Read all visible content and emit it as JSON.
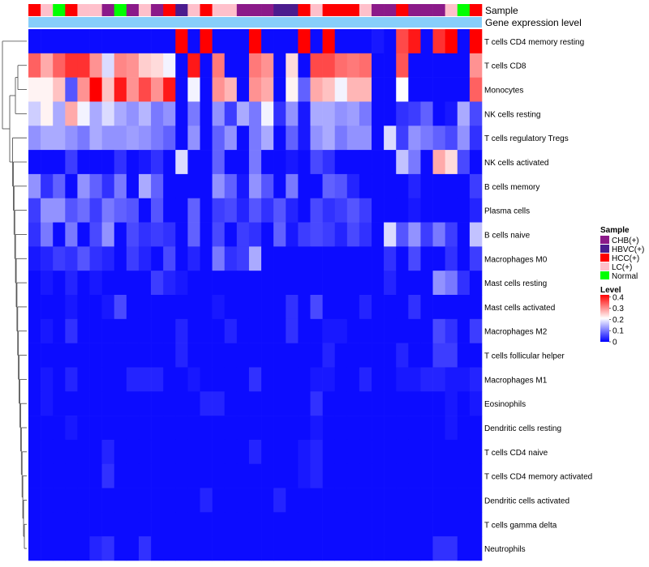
{
  "chart_data": {
    "type": "heatmap",
    "annotation_labels": {
      "sample": "Sample",
      "expression": "Gene expression level"
    },
    "columns": 37,
    "sample_groups": [
      "HCC(+)",
      "LC(+)",
      "Normal",
      "HCC(+)",
      "LC(+)",
      "LC(+)",
      "CHB(+)",
      "Normal",
      "CHB(+)",
      "LC(+)",
      "CHB(+)",
      "HCC(+)",
      "HBVC(+)",
      "LC(+)",
      "HCC(+)",
      "LC(+)",
      "LC(+)",
      "CHB(+)",
      "CHB(+)",
      "CHB(+)",
      "HBVC(+)",
      "HBVC(+)",
      "HCC(+)",
      "LC(+)",
      "HCC(+)",
      "HCC(+)",
      "HCC(+)",
      "LC(+)",
      "CHB(+)",
      "CHB(+)",
      "HCC(+)",
      "CHB(+)",
      "CHB(+)",
      "CHB(+)",
      "LC(+)",
      "Normal",
      "HCC(+)"
    ],
    "rows": [
      "T cells CD4 memory resting",
      "T cells CD8",
      "Monocytes",
      "NK cells resting",
      "T cells regulatory  Tregs",
      "NK cells activated",
      "B cells memory",
      "Plasma cells",
      "B cells naive",
      "Macrophages M0",
      "Mast cells resting",
      "Mast cells activated",
      "Macrophages M2",
      "T cells follicular helper",
      "Macrophages M1",
      "Eosinophils",
      "Dendritic cells resting",
      "T cells CD4 naive",
      "T cells CD4 memory activated",
      "Dendritic cells activated",
      "T cells gamma delta",
      "Neutrophils"
    ],
    "values": [
      [
        0.01,
        0.01,
        0.01,
        0.01,
        0.01,
        0.01,
        0.01,
        0.01,
        0.01,
        0.01,
        0.01,
        0.01,
        0.42,
        0.01,
        0.42,
        0.01,
        0.01,
        0.01,
        0.42,
        0.01,
        0.01,
        0.01,
        0.42,
        0.01,
        0.42,
        0.01,
        0.01,
        0.01,
        0.02,
        0.01,
        0.36,
        0.4,
        0.01,
        0.38,
        0.42,
        0.01,
        0.42
      ],
      [
        0.34,
        0.28,
        0.34,
        0.38,
        0.38,
        0.3,
        0.18,
        0.31,
        0.3,
        0.25,
        0.24,
        0.2,
        0.01,
        0.4,
        0.01,
        0.32,
        0.01,
        0.01,
        0.32,
        0.3,
        0.01,
        0.24,
        0.01,
        0.36,
        0.36,
        0.33,
        0.32,
        0.33,
        0.01,
        0.01,
        0.35,
        0.01,
        0.01,
        0.01,
        0.01,
        0.01,
        0.3
      ],
      [
        0.22,
        0.22,
        0.26,
        0.07,
        0.3,
        0.42,
        0.26,
        0.4,
        0.3,
        0.36,
        0.3,
        0.4,
        0.01,
        0.2,
        0.01,
        0.3,
        0.27,
        0.01,
        0.3,
        0.28,
        0.01,
        0.22,
        0.08,
        0.28,
        0.26,
        0.2,
        0.27,
        0.27,
        0.01,
        0.01,
        0.21,
        0.01,
        0.01,
        0.01,
        0.01,
        0.01,
        0.34
      ],
      [
        0.17,
        0.22,
        0.14,
        0.28,
        0.2,
        0.14,
        0.18,
        0.14,
        0.12,
        0.15,
        0.1,
        0.12,
        0.01,
        0.1,
        0.01,
        0.12,
        0.05,
        0.14,
        0.1,
        0.2,
        0.04,
        0.12,
        0.02,
        0.14,
        0.14,
        0.12,
        0.13,
        0.1,
        0.01,
        0.01,
        0.04,
        0.05,
        0.08,
        0.01,
        0.02,
        0.14,
        0.06
      ],
      [
        0.12,
        0.14,
        0.14,
        0.12,
        0.1,
        0.14,
        0.12,
        0.12,
        0.13,
        0.12,
        0.1,
        0.08,
        0.01,
        0.12,
        0.01,
        0.08,
        0.12,
        0.01,
        0.1,
        0.14,
        0.01,
        0.08,
        0.02,
        0.12,
        0.14,
        0.1,
        0.12,
        0.12,
        0.01,
        0.18,
        0.05,
        0.12,
        0.1,
        0.08,
        0.06,
        0.12,
        0.04
      ],
      [
        0.01,
        0.01,
        0.01,
        0.05,
        0.01,
        0.01,
        0.01,
        0.04,
        0.01,
        0.02,
        0.04,
        0.01,
        0.18,
        0.01,
        0.01,
        0.08,
        0.01,
        0.01,
        0.1,
        0.01,
        0.01,
        0.02,
        0.01,
        0.06,
        0.04,
        0.01,
        0.01,
        0.01,
        0.01,
        0.01,
        0.16,
        0.1,
        0.01,
        0.28,
        0.24,
        0.06,
        0.01
      ],
      [
        0.12,
        0.04,
        0.08,
        0.01,
        0.12,
        0.08,
        0.04,
        0.1,
        0.01,
        0.14,
        0.08,
        0.01,
        0.01,
        0.01,
        0.01,
        0.12,
        0.08,
        0.02,
        0.12,
        0.07,
        0.01,
        0.1,
        0.01,
        0.01,
        0.08,
        0.07,
        0.03,
        0.01,
        0.01,
        0.01,
        0.01,
        0.03,
        0.01,
        0.01,
        0.01,
        0.01,
        0.05
      ],
      [
        0.05,
        0.12,
        0.12,
        0.07,
        0.09,
        0.05,
        0.1,
        0.08,
        0.07,
        0.01,
        0.07,
        0.01,
        0.01,
        0.08,
        0.01,
        0.05,
        0.06,
        0.03,
        0.07,
        0.04,
        0.07,
        0.03,
        0.01,
        0.06,
        0.04,
        0.05,
        0.07,
        0.05,
        0.01,
        0.01,
        0.01,
        0.02,
        0.01,
        0.01,
        0.01,
        0.01,
        0.03
      ],
      [
        0.04,
        0.1,
        0.01,
        0.1,
        0.01,
        0.06,
        0.12,
        0.01,
        0.06,
        0.04,
        0.05,
        0.04,
        0.01,
        0.08,
        0.01,
        0.06,
        0.01,
        0.05,
        0.04,
        0.01,
        0.08,
        0.02,
        0.05,
        0.06,
        0.05,
        0.03,
        0.06,
        0.04,
        0.01,
        0.18,
        0.07,
        0.12,
        0.05,
        0.1,
        0.05,
        0.01,
        0.16
      ],
      [
        0.02,
        0.03,
        0.05,
        0.04,
        0.07,
        0.04,
        0.03,
        0.01,
        0.05,
        0.03,
        0.01,
        0.06,
        0.01,
        0.03,
        0.01,
        0.1,
        0.04,
        0.05,
        0.14,
        0.01,
        0.01,
        0.01,
        0.01,
        0.01,
        0.01,
        0.01,
        0.01,
        0.01,
        0.01,
        0.04,
        0.01,
        0.06,
        0.01,
        0.01,
        0.04,
        0.01,
        0.05
      ],
      [
        0.01,
        0.02,
        0.01,
        0.03,
        0.01,
        0.02,
        0.01,
        0.01,
        0.01,
        0.01,
        0.05,
        0.03,
        0.02,
        0.01,
        0.01,
        0.01,
        0.01,
        0.01,
        0.01,
        0.01,
        0.01,
        0.01,
        0.01,
        0.01,
        0.01,
        0.01,
        0.01,
        0.01,
        0.01,
        0.03,
        0.01,
        0.01,
        0.01,
        0.12,
        0.1,
        0.04,
        0.01
      ],
      [
        0.01,
        0.01,
        0.01,
        0.02,
        0.01,
        0.01,
        0.02,
        0.06,
        0.01,
        0.01,
        0.01,
        0.01,
        0.01,
        0.01,
        0.01,
        0.02,
        0.01,
        0.01,
        0.01,
        0.01,
        0.01,
        0.04,
        0.01,
        0.06,
        0.01,
        0.01,
        0.01,
        0.03,
        0.01,
        0.01,
        0.01,
        0.04,
        0.01,
        0.01,
        0.01,
        0.01,
        0.01
      ],
      [
        0.01,
        0.02,
        0.01,
        0.04,
        0.01,
        0.01,
        0.01,
        0.01,
        0.01,
        0.01,
        0.01,
        0.01,
        0.03,
        0.01,
        0.01,
        0.01,
        0.03,
        0.01,
        0.01,
        0.01,
        0.01,
        0.04,
        0.01,
        0.01,
        0.02,
        0.02,
        0.01,
        0.01,
        0.01,
        0.01,
        0.01,
        0.01,
        0.01,
        0.06,
        0.04,
        0.01,
        0.05
      ],
      [
        0.01,
        0.01,
        0.01,
        0.01,
        0.01,
        0.01,
        0.01,
        0.01,
        0.01,
        0.01,
        0.01,
        0.01,
        0.03,
        0.01,
        0.01,
        0.01,
        0.01,
        0.01,
        0.01,
        0.01,
        0.01,
        0.01,
        0.01,
        0.01,
        0.03,
        0.01,
        0.01,
        0.01,
        0.01,
        0.01,
        0.03,
        0.01,
        0.01,
        0.05,
        0.05,
        0.01,
        0.01
      ],
      [
        0.01,
        0.02,
        0.01,
        0.03,
        0.01,
        0.01,
        0.01,
        0.01,
        0.03,
        0.03,
        0.03,
        0.01,
        0.01,
        0.02,
        0.01,
        0.01,
        0.01,
        0.01,
        0.04,
        0.01,
        0.01,
        0.01,
        0.01,
        0.02,
        0.02,
        0.01,
        0.01,
        0.03,
        0.01,
        0.01,
        0.02,
        0.02,
        0.03,
        0.03,
        0.02,
        0.02,
        0.03
      ],
      [
        0.01,
        0.02,
        0.01,
        0.01,
        0.01,
        0.01,
        0.01,
        0.01,
        0.01,
        0.01,
        0.01,
        0.01,
        0.01,
        0.01,
        0.03,
        0.03,
        0.01,
        0.01,
        0.01,
        0.01,
        0.01,
        0.01,
        0.01,
        0.04,
        0.01,
        0.01,
        0.01,
        0.01,
        0.01,
        0.01,
        0.01,
        0.01,
        0.01,
        0.01,
        0.02,
        0.01,
        0.02
      ],
      [
        0.01,
        0.01,
        0.01,
        0.02,
        0.01,
        0.01,
        0.01,
        0.01,
        0.01,
        0.01,
        0.01,
        0.01,
        0.01,
        0.01,
        0.01,
        0.01,
        0.01,
        0.01,
        0.01,
        0.01,
        0.01,
        0.01,
        0.01,
        0.02,
        0.01,
        0.01,
        0.01,
        0.01,
        0.01,
        0.01,
        0.01,
        0.01,
        0.01,
        0.01,
        0.02,
        0.01,
        0.01
      ],
      [
        0.01,
        0.01,
        0.01,
        0.01,
        0.01,
        0.01,
        0.03,
        0.01,
        0.01,
        0.01,
        0.01,
        0.01,
        0.01,
        0.01,
        0.01,
        0.01,
        0.01,
        0.01,
        0.03,
        0.01,
        0.01,
        0.01,
        0.02,
        0.03,
        0.01,
        0.01,
        0.01,
        0.01,
        0.01,
        0.01,
        0.01,
        0.01,
        0.01,
        0.01,
        0.01,
        0.01,
        0.01
      ],
      [
        0.01,
        0.01,
        0.01,
        0.01,
        0.01,
        0.01,
        0.04,
        0.01,
        0.01,
        0.01,
        0.01,
        0.01,
        0.01,
        0.01,
        0.01,
        0.01,
        0.01,
        0.01,
        0.01,
        0.01,
        0.01,
        0.01,
        0.02,
        0.03,
        0.01,
        0.01,
        0.01,
        0.01,
        0.01,
        0.01,
        0.01,
        0.01,
        0.01,
        0.01,
        0.01,
        0.01,
        0.01
      ],
      [
        0.01,
        0.01,
        0.01,
        0.01,
        0.01,
        0.01,
        0.01,
        0.01,
        0.01,
        0.01,
        0.01,
        0.01,
        0.01,
        0.01,
        0.03,
        0.01,
        0.01,
        0.01,
        0.01,
        0.01,
        0.03,
        0.01,
        0.01,
        0.01,
        0.01,
        0.01,
        0.01,
        0.01,
        0.01,
        0.01,
        0.01,
        0.01,
        0.01,
        0.01,
        0.01,
        0.01,
        0.01
      ],
      [
        0.01,
        0.01,
        0.01,
        0.01,
        0.01,
        0.01,
        0.01,
        0.01,
        0.01,
        0.01,
        0.01,
        0.01,
        0.01,
        0.01,
        0.01,
        0.01,
        0.01,
        0.01,
        0.01,
        0.01,
        0.01,
        0.01,
        0.01,
        0.01,
        0.01,
        0.01,
        0.01,
        0.01,
        0.01,
        0.01,
        0.01,
        0.01,
        0.01,
        0.01,
        0.01,
        0.01,
        0.01
      ],
      [
        0.01,
        0.01,
        0.01,
        0.01,
        0.01,
        0.03,
        0.04,
        0.01,
        0.01,
        0.04,
        0.01,
        0.01,
        0.01,
        0.01,
        0.01,
        0.01,
        0.01,
        0.01,
        0.01,
        0.01,
        0.01,
        0.01,
        0.01,
        0.01,
        0.01,
        0.01,
        0.01,
        0.01,
        0.01,
        0.01,
        0.01,
        0.01,
        0.01,
        0.04,
        0.04,
        0.01,
        0.01
      ]
    ],
    "legend_sample": {
      "title": "Sample",
      "entries": [
        {
          "label": "CHB(+)",
          "color": "#8b1a89"
        },
        {
          "label": "HBVC(+)",
          "color": "#4b1c8e"
        },
        {
          "label": "HCC(+)",
          "color": "#ff0000"
        },
        {
          "label": "LC(+)",
          "color": "#ffc0cb"
        },
        {
          "label": "Normal",
          "color": "#00ff00"
        }
      ]
    },
    "legend_level": {
      "title": "Level",
      "ticks": [
        "0.4",
        "0.3",
        "0.2",
        "0.1",
        "0"
      ],
      "tick_values": [
        0.4,
        0.3,
        0.2,
        0.1,
        0
      ],
      "min": 0,
      "max": 0.42
    },
    "colors": {
      "low": "#0000ff",
      "mid": "#ffffff",
      "high": "#ff0000",
      "mid_value": 0.21,
      "expression_bar": "#87cefa"
    }
  }
}
